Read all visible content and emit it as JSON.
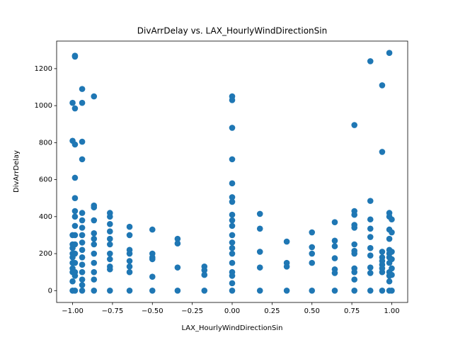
{
  "chart_data": {
    "type": "scatter",
    "title": "DivArrDelay vs. LAX_HourlyWindDirectionSin",
    "x_label": "LAX_HourlyWindDirectionSin",
    "y_label": "DivArrDelay",
    "color": "#1f77b4",
    "xlim": [
      -1.1,
      1.1
    ],
    "ylim": [
      -64,
      1349
    ],
    "xticks": [
      {
        "value": -1,
        "label": "−1.00"
      },
      {
        "value": -0.75,
        "label": "−0.75"
      },
      {
        "value": -0.5,
        "label": "−0.50"
      },
      {
        "value": -0.25,
        "label": "−0.25"
      },
      {
        "value": 0,
        "label": "0.00"
      },
      {
        "value": 0.25,
        "label": "0.25"
      },
      {
        "value": 0.5,
        "label": "0.50"
      },
      {
        "value": 0.75,
        "label": "0.75"
      },
      {
        "value": 1,
        "label": "1.00"
      }
    ],
    "yticks": [
      0,
      200,
      400,
      600,
      800,
      1000,
      1200
    ],
    "x": [
      -1,
      -1,
      -1,
      -1,
      -1,
      -1,
      -1,
      -1,
      -1,
      -1,
      -1,
      -1,
      -0.985,
      -0.985,
      -0.985,
      -0.985,
      -0.985,
      -0.985,
      -0.985,
      -0.985,
      -0.985,
      -0.985,
      -0.985,
      -0.985,
      -0.985,
      -0.985,
      -0.985,
      -0.985,
      -0.94,
      -0.94,
      -0.94,
      -0.94,
      -0.94,
      -0.94,
      -0.94,
      -0.94,
      -0.94,
      -0.94,
      -0.94,
      -0.94,
      -0.94,
      -0.94,
      -0.94,
      -0.94,
      -0.866,
      -0.866,
      -0.866,
      -0.866,
      -0.866,
      -0.866,
      -0.866,
      -0.866,
      -0.866,
      -0.866,
      -0.866,
      -0.866,
      -0.766,
      -0.766,
      -0.766,
      -0.766,
      -0.766,
      -0.766,
      -0.766,
      -0.766,
      -0.766,
      -0.766,
      -0.766,
      -0.643,
      -0.643,
      -0.643,
      -0.643,
      -0.643,
      -0.643,
      -0.643,
      -0.643,
      -0.5,
      -0.5,
      -0.5,
      -0.5,
      -0.5,
      -0.5,
      -0.342,
      -0.342,
      -0.342,
      -0.342,
      -0.174,
      -0.174,
      -0.174,
      -0.174,
      0,
      0,
      0,
      0,
      0,
      0,
      0,
      0,
      0,
      0,
      0,
      0,
      0,
      0,
      0,
      0,
      0,
      0,
      0,
      0.174,
      0.174,
      0.174,
      0.174,
      0.174,
      0.342,
      0.342,
      0.342,
      0.342,
      0.5,
      0.5,
      0.5,
      0.5,
      0.5,
      0.643,
      0.643,
      0.643,
      0.643,
      0.643,
      0.643,
      0.643,
      0.766,
      0.766,
      0.766,
      0.766,
      0.766,
      0.766,
      0.766,
      0.766,
      0.766,
      0.766,
      0.766,
      0.766,
      0.866,
      0.866,
      0.866,
      0.866,
      0.866,
      0.866,
      0.866,
      0.866,
      0.866,
      0.866,
      0.94,
      0.94,
      0.94,
      0.94,
      0.94,
      0.94,
      0.94,
      0.94,
      0.94,
      0.985,
      0.985,
      0.985,
      0.985,
      0.985,
      0.985,
      0.985,
      0.985,
      0.985,
      0.985,
      0.985,
      0.985,
      0.985,
      1,
      1,
      1,
      1,
      1,
      1,
      1
    ],
    "values": [
      0,
      1015,
      810,
      100,
      150,
      200,
      250,
      300,
      50,
      120,
      180,
      230,
      0,
      1270,
      1265,
      985,
      790,
      610,
      500,
      430,
      400,
      350,
      300,
      250,
      200,
      150,
      100,
      80,
      0,
      1090,
      1015,
      805,
      710,
      420,
      380,
      340,
      300,
      260,
      220,
      180,
      140,
      100,
      60,
      30,
      0,
      1050,
      460,
      450,
      380,
      310,
      280,
      250,
      200,
      150,
      100,
      60,
      0,
      420,
      400,
      360,
      320,
      280,
      250,
      200,
      170,
      130,
      115,
      0,
      345,
      300,
      220,
      200,
      160,
      130,
      100,
      0,
      330,
      200,
      180,
      170,
      75,
      0,
      280,
      255,
      125,
      0,
      130,
      110,
      85,
      0,
      1050,
      1030,
      880,
      710,
      580,
      505,
      480,
      410,
      380,
      350,
      300,
      260,
      230,
      200,
      150,
      100,
      40,
      80,
      0,
      415,
      335,
      210,
      125,
      0,
      265,
      150,
      130,
      0,
      315,
      235,
      200,
      150,
      0,
      370,
      270,
      240,
      175,
      115,
      95,
      0,
      895,
      430,
      410,
      355,
      340,
      250,
      215,
      200,
      120,
      100,
      60,
      0,
      1240,
      485,
      385,
      335,
      290,
      230,
      190,
      125,
      95,
      0,
      1110,
      750,
      210,
      180,
      160,
      140,
      120,
      100,
      0,
      1285,
      420,
      400,
      330,
      280,
      220,
      200,
      180,
      150,
      100,
      80,
      50,
      0,
      385,
      315,
      210,
      170,
      120,
      85
    ]
  }
}
